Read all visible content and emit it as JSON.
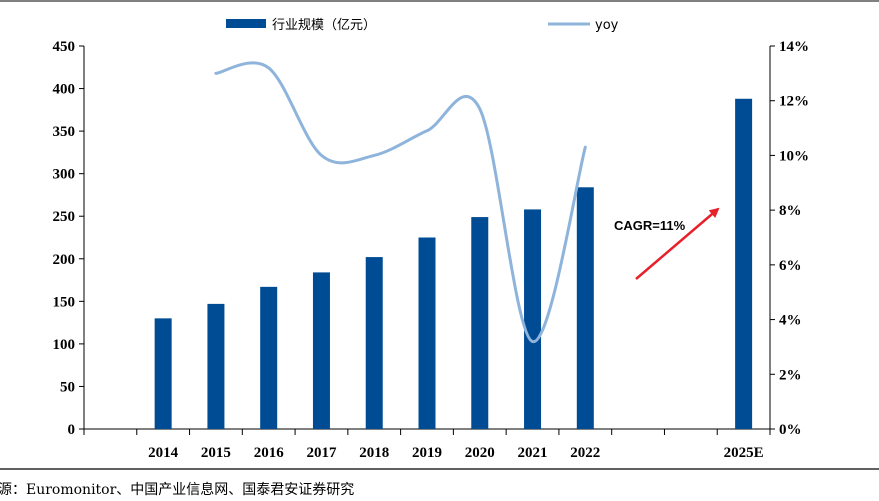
{
  "chart_data": {
    "type": "bar",
    "categories": [
      "2014",
      "2015",
      "2016",
      "2017",
      "2018",
      "2019",
      "2020",
      "2021",
      "2022",
      "2025E"
    ],
    "series": [
      {
        "name": "行业规模（亿元）",
        "type": "bar",
        "axis": "left",
        "color": "#004c94",
        "values": [
          130,
          147,
          167,
          184,
          202,
          225,
          249,
          258,
          284,
          388
        ]
      },
      {
        "name": "yoy",
        "type": "line",
        "axis": "right",
        "color": "#8eb4dc",
        "values": [
          null,
          0.13,
          0.132,
          0.1,
          0.1,
          0.109,
          0.117,
          0.032,
          0.103,
          null
        ]
      }
    ],
    "ylim_left": [
      0,
      450
    ],
    "yticks_left": [
      "0",
      "50",
      "100",
      "150",
      "200",
      "250",
      "300",
      "350",
      "400",
      "450"
    ],
    "ylim_right": [
      0,
      0.14
    ],
    "yticks_right": [
      "0%",
      "2%",
      "4%",
      "6%",
      "8%",
      "10%",
      "12%",
      "14%"
    ],
    "annotation": {
      "text": "CAGR=11%",
      "arrow_color": "#e8202a"
    },
    "legend_position": "top",
    "grid": false
  },
  "source_text": "源：Euromonitor、中国产业信息网、国泰君安证券研究"
}
